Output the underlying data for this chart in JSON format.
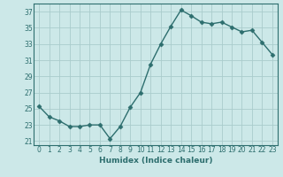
{
  "x": [
    0,
    1,
    2,
    3,
    4,
    5,
    6,
    7,
    8,
    9,
    10,
    11,
    12,
    13,
    14,
    15,
    16,
    17,
    18,
    19,
    20,
    21,
    22,
    23
  ],
  "y": [
    25.3,
    24.0,
    23.5,
    22.8,
    22.8,
    23.0,
    23.0,
    21.3,
    22.8,
    25.2,
    27.0,
    30.5,
    33.0,
    35.2,
    37.2,
    36.5,
    35.7,
    35.5,
    35.7,
    35.1,
    34.5,
    34.7,
    33.2,
    31.7
  ],
  "title": "",
  "xlabel": "Humidex (Indice chaleur)",
  "ylabel": "",
  "xlim": [
    -0.5,
    23.5
  ],
  "ylim": [
    20.5,
    38.0
  ],
  "yticks": [
    21,
    23,
    25,
    27,
    29,
    31,
    33,
    35,
    37
  ],
  "xticks": [
    0,
    1,
    2,
    3,
    4,
    5,
    6,
    7,
    8,
    9,
    10,
    11,
    12,
    13,
    14,
    15,
    16,
    17,
    18,
    19,
    20,
    21,
    22,
    23
  ],
  "line_color": "#2d6e6e",
  "bg_color": "#cce8e8",
  "grid_color": "#aacccc",
  "marker": "D",
  "marker_size": 2.5,
  "line_width": 1.0
}
